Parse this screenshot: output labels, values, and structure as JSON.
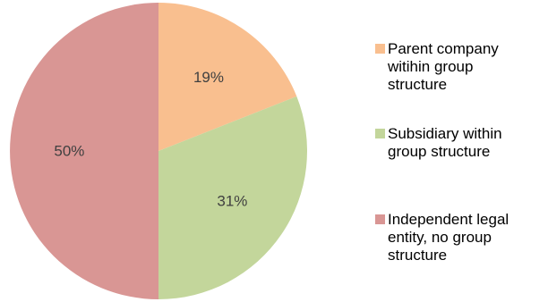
{
  "chart_data": {
    "type": "pie",
    "title": "",
    "slices": [
      {
        "label": "Parent company witihin group structure",
        "value": 19,
        "display": "19%",
        "color": "#f9bf8f",
        "legend_lines": [
          "Parent company",
          "witihin group",
          "structure"
        ]
      },
      {
        "label": "Subsidiary within group structure",
        "value": 31,
        "display": "31%",
        "color": "#c3d69b",
        "legend_lines": [
          "Subsidiary within",
          "group structure"
        ]
      },
      {
        "label": "Independent legal entity, no group structure",
        "value": 50,
        "display": "50%",
        "color": "#d99694",
        "legend_lines": [
          "Independent legal",
          "entity, no group",
          "structure"
        ]
      }
    ],
    "start_angle": "12 o'clock",
    "direction": "clockwise",
    "legend_position": "right"
  }
}
